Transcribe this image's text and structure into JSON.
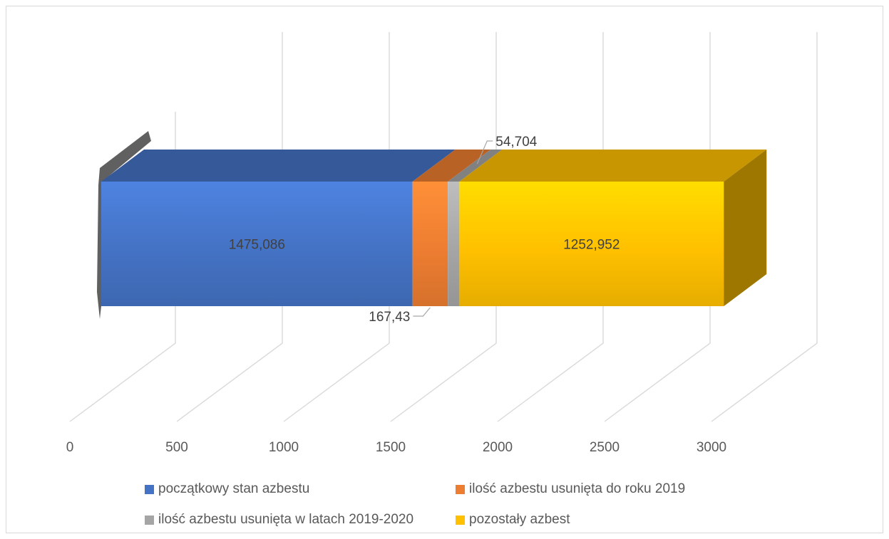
{
  "chart_data": {
    "type": "bar",
    "orientation": "horizontal-stacked-3d",
    "title": "",
    "xlabel": "",
    "ylabel": "",
    "xlim": [
      0,
      3000
    ],
    "x_ticks": [
      "0",
      "500",
      "1000",
      "1500",
      "2000",
      "2500",
      "3000"
    ],
    "grid": true,
    "legend_position": "bottom",
    "series": [
      {
        "name": "początkowy stan azbestu",
        "value": 1475.086,
        "label": "1475,086",
        "color": "#4472c4"
      },
      {
        "name": "ilość azbestu usunięta do roku 2019",
        "value": 167.43,
        "label": "167,43",
        "color": "#ed7d31"
      },
      {
        "name": "ilość azbestu usunięta w latach 2019-2020",
        "value": 54.704,
        "label": "54,704",
        "color": "#a5a5a5"
      },
      {
        "name": "pozostały azbest",
        "value": 1252.952,
        "label": "1252,952",
        "color": "#ffc000"
      }
    ]
  }
}
